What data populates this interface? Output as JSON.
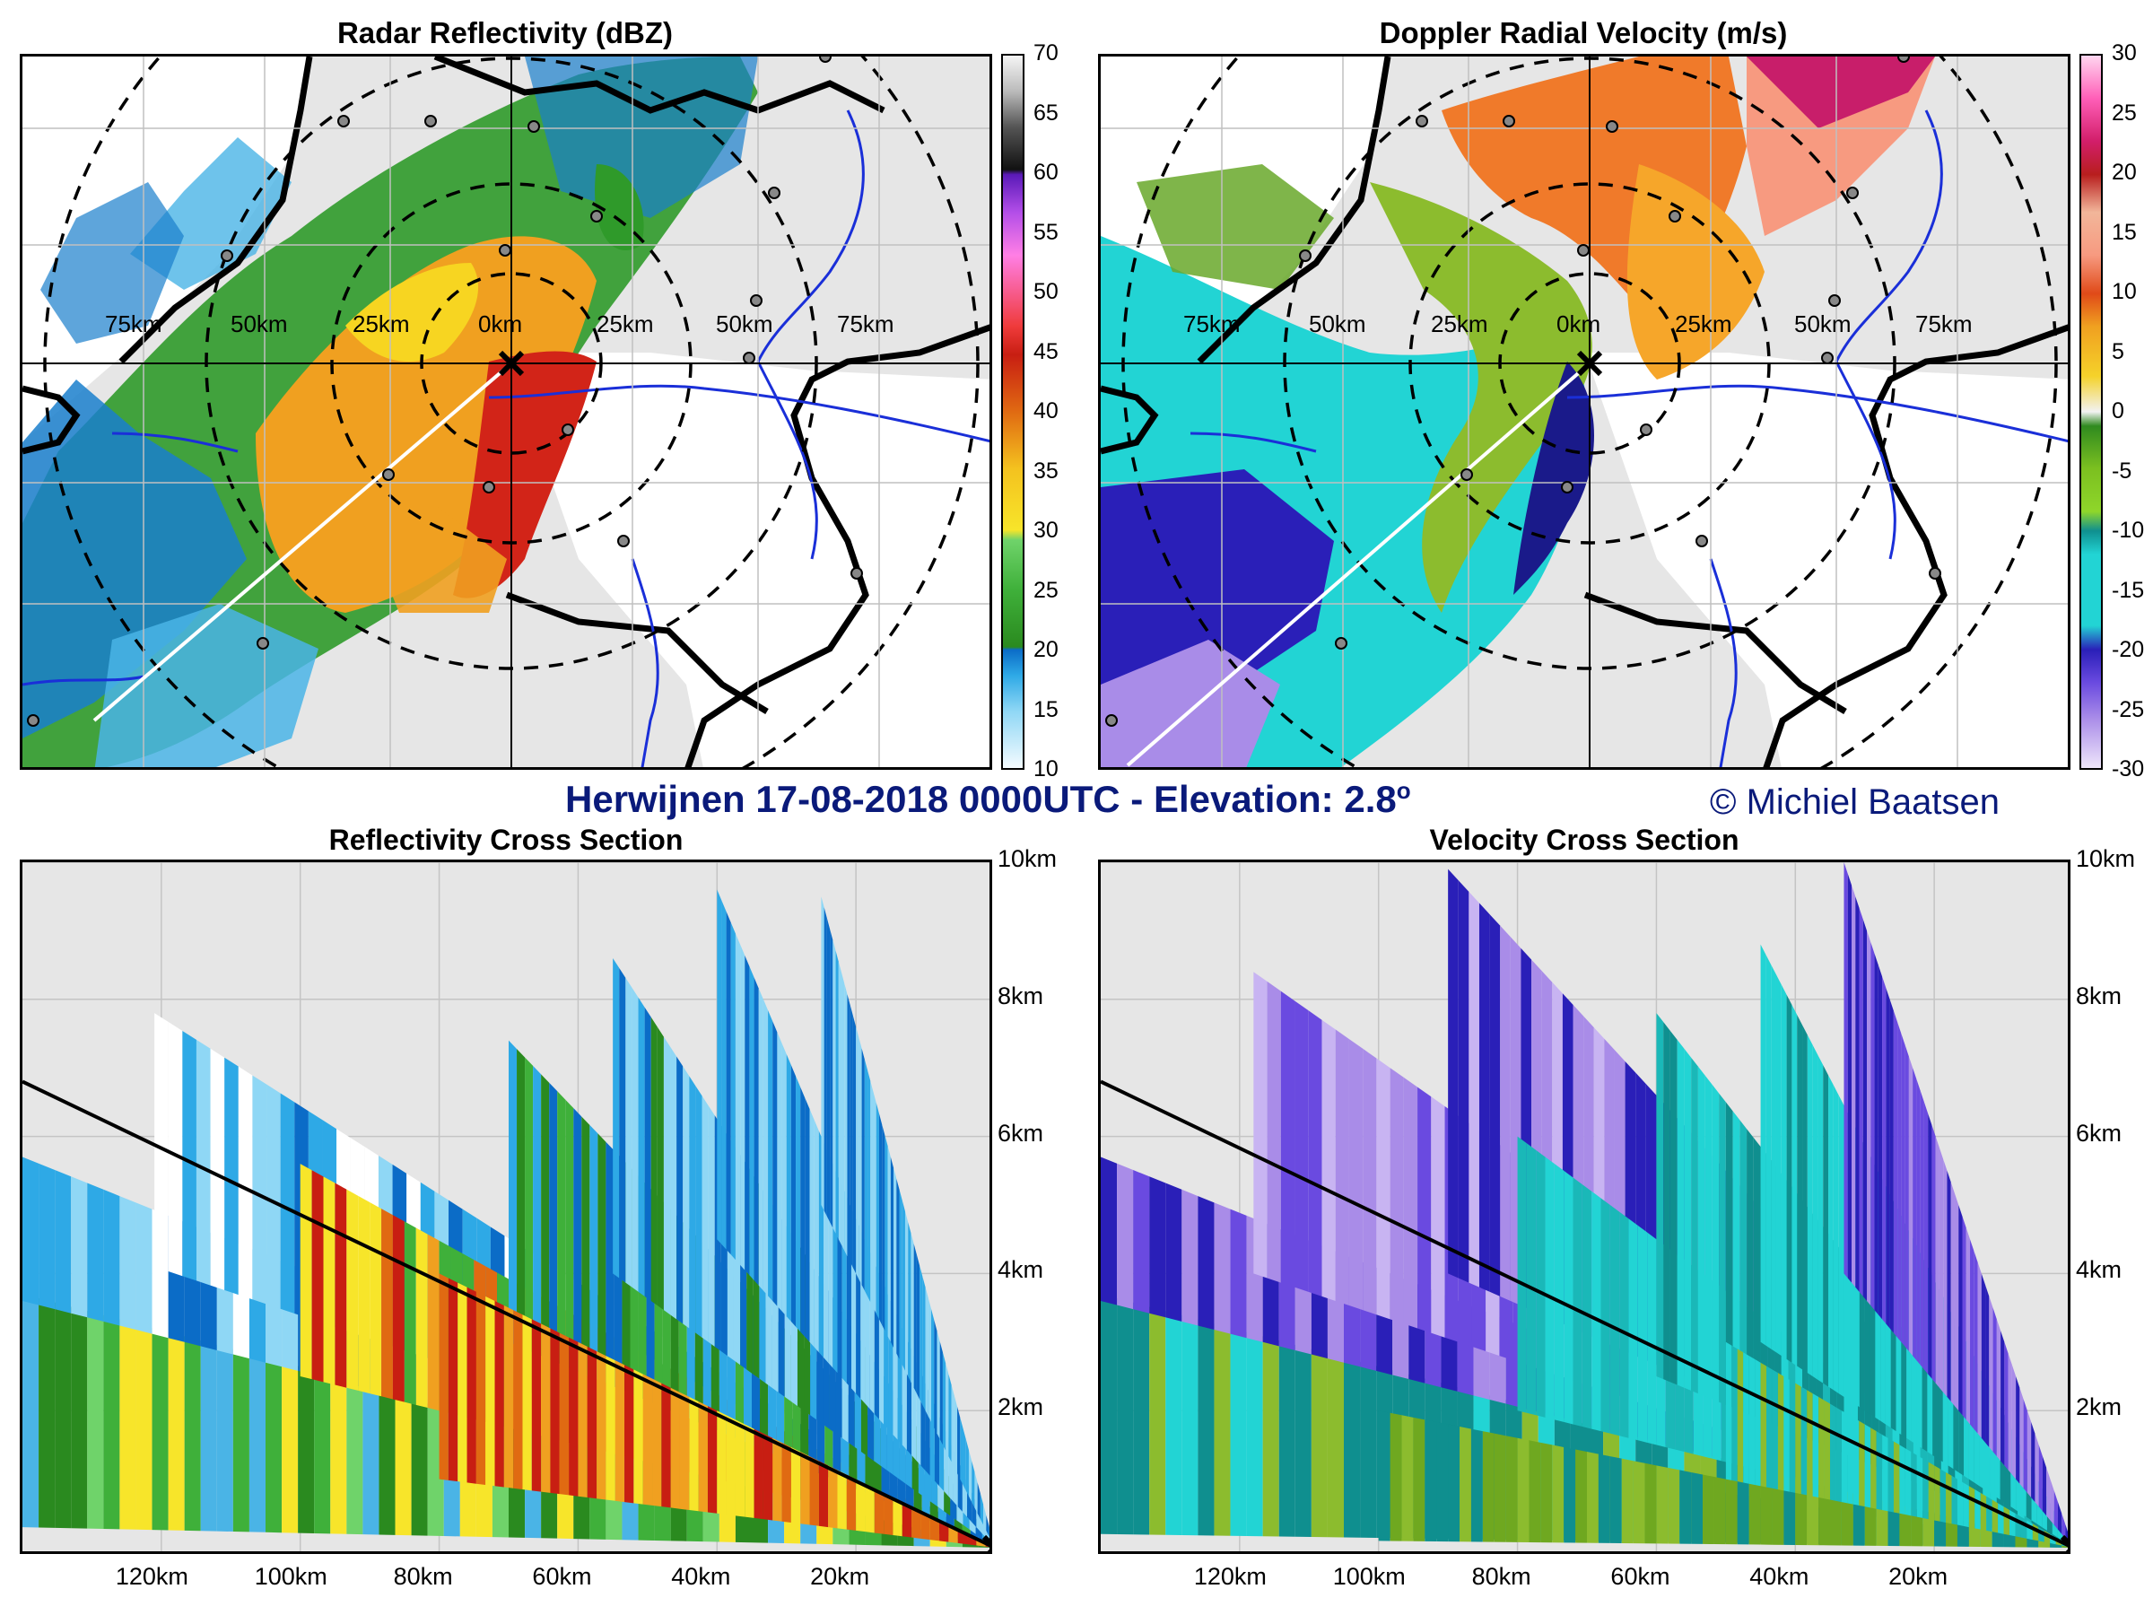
{
  "main_title": {
    "text": "Herwijnen 17-08-2018 0000UTC - Elevation: 2.8",
    "sup": "o"
  },
  "copyright": "© Michiel Baatsen",
  "panels": {
    "reflectivity_map": {
      "title": "Radar Reflectivity (dBZ)"
    },
    "velocity_map": {
      "title": "Doppler Radial Velocity (m/s)"
    },
    "reflectivity_xs": {
      "title": "Reflectivity Cross Section"
    },
    "velocity_xs": {
      "title": "Velocity Cross Section"
    }
  },
  "colors": {
    "panel_bg": "#e6e6e6",
    "rivers": "#1a2fd8",
    "borders": "#000000",
    "title": "#0a1a7a"
  },
  "chart_data": [
    {
      "type": "heatmap",
      "title": "Radar Reflectivity (dBZ)",
      "range_labels": [
        "75km",
        "50km",
        "25km",
        "0km",
        "25km",
        "50km",
        "75km"
      ],
      "range_rings_km": [
        25,
        50,
        75,
        100
      ],
      "colorbar": {
        "label": "dBZ",
        "ticks": [
          10,
          15,
          20,
          25,
          30,
          35,
          40,
          45,
          50,
          55,
          60,
          65,
          70
        ]
      }
    },
    {
      "type": "heatmap",
      "title": "Doppler Radial Velocity (m/s)",
      "range_labels": [
        "75km",
        "50km",
        "25km",
        "0km",
        "25km",
        "50km",
        "75km"
      ],
      "range_rings_km": [
        25,
        50,
        75,
        100
      ],
      "colorbar": {
        "label": "m/s",
        "ticks": [
          -30,
          -25,
          -20,
          -15,
          -10,
          -5,
          0,
          5,
          10,
          15,
          20,
          25,
          30
        ]
      }
    },
    {
      "type": "heatmap",
      "title": "Reflectivity Cross Section",
      "x_ticks": [
        "120km",
        "100km",
        "80km",
        "60km",
        "40km",
        "20km"
      ],
      "x_tick_values_km": [
        120,
        100,
        80,
        60,
        40,
        20
      ],
      "y_ticks": [
        "2km",
        "4km",
        "6km",
        "8km",
        "10km"
      ],
      "y_tick_values_km": [
        2,
        4,
        6,
        8,
        10
      ],
      "xlim_km": [
        140,
        0
      ],
      "ylim_km": [
        0,
        10
      ],
      "elevation_line": {
        "from": [
          140,
          6.8
        ],
        "to": [
          0,
          0
        ]
      }
    },
    {
      "type": "heatmap",
      "title": "Velocity Cross Section",
      "x_ticks": [
        "120km",
        "100km",
        "80km",
        "60km",
        "40km",
        "20km"
      ],
      "x_tick_values_km": [
        120,
        100,
        80,
        60,
        40,
        20
      ],
      "y_ticks": [
        "2km",
        "4km",
        "6km",
        "8km",
        "10km"
      ],
      "y_tick_values_km": [
        2,
        4,
        6,
        8,
        10
      ],
      "xlim_km": [
        140,
        0
      ],
      "ylim_km": [
        0,
        10
      ],
      "elevation_line": {
        "from": [
          140,
          6.8
        ],
        "to": [
          0,
          0
        ]
      }
    }
  ]
}
